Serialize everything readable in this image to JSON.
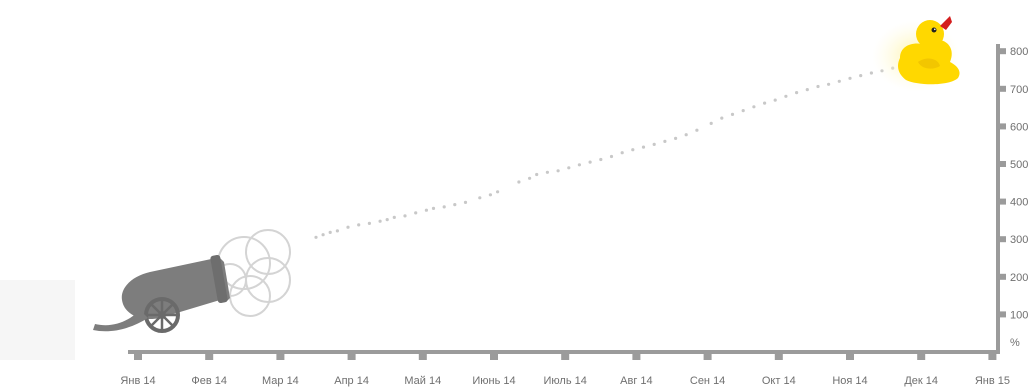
{
  "chart_data": {
    "type": "scatter",
    "title": "",
    "xlabel": "",
    "ylabel": "%",
    "x_categories": [
      "Янв 14",
      "Фев 14",
      "Мар 14",
      "Апр 14",
      "Май 14",
      "Июнь 14",
      "Июль 14",
      "Авг 14",
      "Сен 14",
      "Окт 14",
      "Ноя 14",
      "Дек 14",
      "Янв 15"
    ],
    "y_ticks": [
      100,
      200,
      300,
      400,
      500,
      600,
      700,
      800
    ],
    "ylim": [
      0,
      900
    ],
    "grid": false,
    "series": [
      {
        "points": [
          [
            2.5,
            305
          ],
          [
            2.6,
            312
          ],
          [
            2.7,
            318
          ],
          [
            2.8,
            322
          ],
          [
            2.95,
            332
          ],
          [
            3.1,
            338
          ],
          [
            3.25,
            342
          ],
          [
            3.4,
            348
          ],
          [
            3.5,
            352
          ],
          [
            3.6,
            358
          ],
          [
            3.75,
            362
          ],
          [
            3.9,
            370
          ],
          [
            4.05,
            377
          ],
          [
            4.15,
            382
          ],
          [
            4.3,
            386
          ],
          [
            4.45,
            392
          ],
          [
            4.6,
            398
          ],
          [
            4.8,
            410
          ],
          [
            4.95,
            418
          ],
          [
            5.05,
            426
          ],
          [
            5.35,
            452
          ],
          [
            5.5,
            462
          ],
          [
            5.6,
            472
          ],
          [
            5.75,
            478
          ],
          [
            5.9,
            482
          ],
          [
            6.05,
            490
          ],
          [
            6.2,
            498
          ],
          [
            6.35,
            505
          ],
          [
            6.5,
            512
          ],
          [
            6.65,
            520
          ],
          [
            6.8,
            530
          ],
          [
            6.95,
            538
          ],
          [
            7.1,
            545
          ],
          [
            7.25,
            552
          ],
          [
            7.4,
            560
          ],
          [
            7.55,
            568
          ],
          [
            7.7,
            578
          ],
          [
            7.85,
            590
          ],
          [
            8.05,
            608
          ],
          [
            8.2,
            622
          ],
          [
            8.35,
            632
          ],
          [
            8.5,
            642
          ],
          [
            8.65,
            652
          ],
          [
            8.8,
            662
          ],
          [
            8.95,
            670
          ],
          [
            9.1,
            680
          ],
          [
            9.25,
            690
          ],
          [
            9.4,
            698
          ],
          [
            9.55,
            706
          ],
          [
            9.7,
            712
          ],
          [
            9.85,
            720
          ],
          [
            10.0,
            728
          ],
          [
            10.15,
            735
          ],
          [
            10.3,
            742
          ],
          [
            10.45,
            748
          ],
          [
            10.6,
            755
          ],
          [
            10.75,
            762
          ],
          [
            10.9,
            770
          ],
          [
            11.0,
            778
          ]
        ]
      }
    ]
  },
  "colors": {
    "axis": "#9b9b9b",
    "points": "#c8c8c8",
    "cannon": "#7d7d7d",
    "smoke": "#d8d8d8",
    "duck_body": "#ffd800",
    "duck_glow": "#fff6b0",
    "duck_beak": "#d41e1e"
  },
  "decorations": {
    "left_icon": "cannon-icon",
    "right_icon": "rubber-duck-icon"
  }
}
